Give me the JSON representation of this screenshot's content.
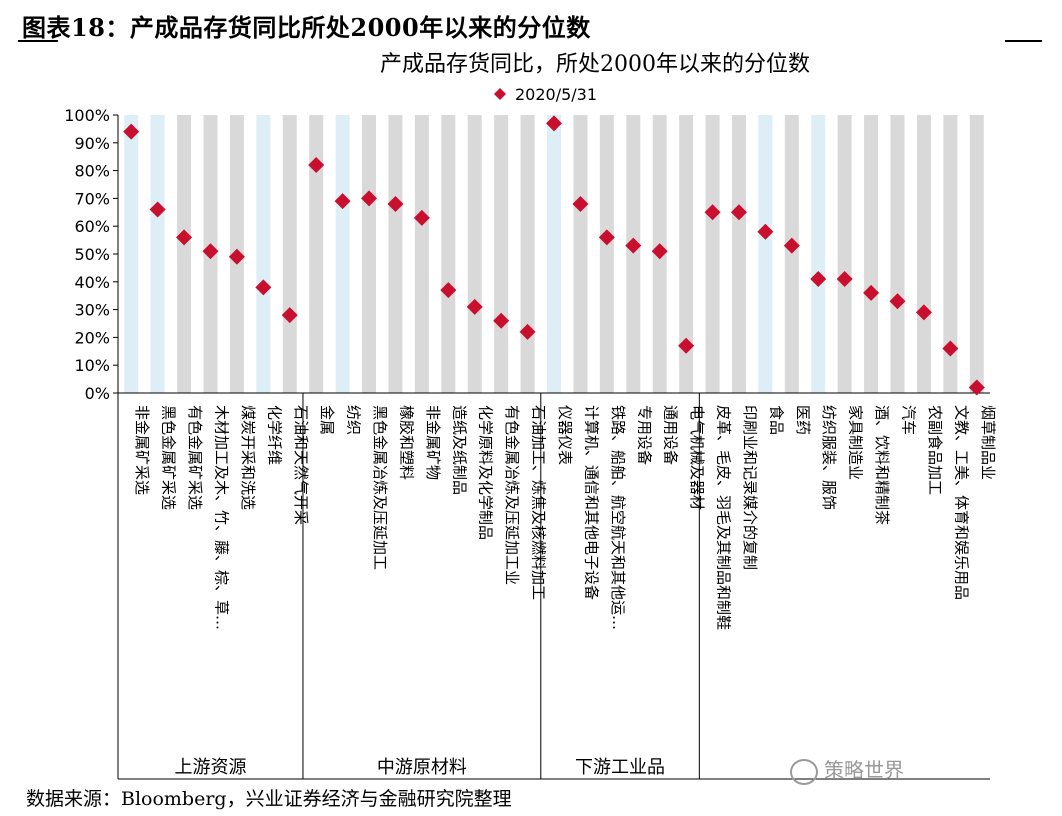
{
  "figure_title": "图表18：产成品存货同比所处2000年以来的分位数",
  "source": "数据来源：Bloomberg，兴业证券经济与金融研究院整理",
  "watermark": "策略世界",
  "colors": {
    "marker": "#c8102e",
    "band_grey": "#d9d9d9",
    "band_blue": "#ddeef6"
  },
  "chart_data": {
    "type": "scatter",
    "title": "产成品存货同比，所处2000年以来的分位数",
    "legend": [
      {
        "name": "2020/5/31",
        "marker": "diamond"
      }
    ],
    "legend_position": "top",
    "ylim": [
      0,
      100
    ],
    "y_ticks": [
      "0%",
      "10%",
      "20%",
      "30%",
      "40%",
      "50%",
      "60%",
      "70%",
      "80%",
      "90%",
      "100%"
    ],
    "groups": [
      {
        "name": "上游资源",
        "count": 7
      },
      {
        "name": "中游原材料",
        "count": 9
      },
      {
        "name": "下游工业品",
        "count": 6
      },
      {
        "name": "",
        "count": 11
      }
    ],
    "categories": [
      "非金属矿采选",
      "黑色金属矿采选",
      "有色金属矿采选",
      "木材加工及木、竹、藤、棕、草…",
      "煤炭开采和洗选",
      "化学纤维",
      "石油和天然气开采",
      "金属",
      "纺织",
      "黑色金属冶炼及压延加工",
      "橡胶和塑料",
      "非金属矿物",
      "造纸及纸制品",
      "化学原料及化学制品",
      "有色金属冶炼及压延加工业",
      "石油加工、炼焦及核燃料加工",
      "仪器仪表",
      "计算机、通信和其他电子设备",
      "铁路、船舶、航空航天和其他运…",
      "专用设备",
      "通用设备",
      "电气机械及器材",
      "皮革、毛皮、羽毛及其制品和制鞋",
      "印刷业和记录媒介的复制",
      "食品",
      "医药",
      "纺织服装、服饰",
      "家具制造业",
      "酒、饮料和精制茶",
      "汽车",
      "农副食品加工",
      "文教、工美、体育和娱乐用品",
      "烟草制品业"
    ],
    "values": [
      94,
      66,
      56,
      51,
      49,
      38,
      28,
      82,
      69,
      70,
      68,
      63,
      37,
      31,
      26,
      22,
      97,
      68,
      56,
      53,
      51,
      17,
      65,
      65,
      58,
      53,
      41,
      41,
      36,
      33,
      29,
      16,
      2
    ],
    "band_colors": [
      "blue",
      "blue",
      "grey",
      "grey",
      "grey",
      "blue",
      "grey",
      "grey",
      "blue",
      "grey",
      "grey",
      "grey",
      "grey",
      "grey",
      "grey",
      "grey",
      "blue",
      "grey",
      "grey",
      "grey",
      "grey",
      "grey",
      "grey",
      "grey",
      "blue",
      "grey",
      "blue",
      "grey",
      "grey",
      "grey",
      "grey",
      "grey",
      "grey"
    ]
  }
}
